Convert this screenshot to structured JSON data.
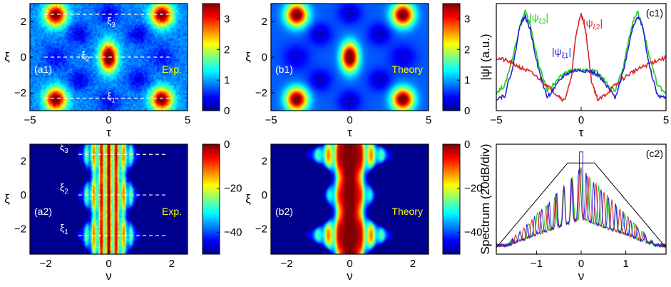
{
  "colormap": [
    "#00008f",
    "#0000ff",
    "#0080ff",
    "#00ffff",
    "#80ff80",
    "#ffff00",
    "#ff8000",
    "#ff0000",
    "#800000"
  ],
  "chart_data": [
    {
      "id": "a1",
      "type": "heatmap",
      "tag": "(a1)",
      "note": "Exp.",
      "xlabel": "τ",
      "ylabel": "ξ",
      "xlim": [
        -5,
        5
      ],
      "ylim": [
        -3,
        3
      ],
      "xticks": [
        -5,
        0,
        5
      ],
      "yticks": [
        -2,
        0,
        2
      ],
      "colorbar": {
        "range": [
          0,
          3.5
        ],
        "ticks": [
          0,
          1,
          2,
          3
        ]
      },
      "peaks": [
        {
          "x": -3.4,
          "y": 2.4,
          "amplitude": 2.8
        },
        {
          "x": 3.4,
          "y": 2.4,
          "amplitude": 2.8
        },
        {
          "x": 0,
          "y": 0,
          "amplitude": 3.1
        },
        {
          "x": -3.4,
          "y": -2.4,
          "amplitude": 2.8
        },
        {
          "x": 3.4,
          "y": -2.4,
          "amplitude": 2.8
        }
      ],
      "markers": [
        {
          "label_base": "ξ",
          "label_sub": "3",
          "y": 2.4
        },
        {
          "label_base": "ξ",
          "label_sub": "2",
          "y": 0
        },
        {
          "label_base": "ξ",
          "label_sub": "1",
          "y": -2.3
        }
      ]
    },
    {
      "id": "b1",
      "type": "heatmap",
      "tag": "(b1)",
      "note": "Theory",
      "xlabel": "τ",
      "ylabel": "ξ",
      "xlim": [
        -5,
        5
      ],
      "ylim": [
        -3,
        3
      ],
      "xticks": [
        -5,
        0,
        5
      ],
      "yticks": [
        -2,
        0,
        2
      ],
      "colorbar": {
        "range": [
          0,
          3.5
        ],
        "ticks": [
          0,
          1,
          2,
          3
        ]
      },
      "peaks": [
        {
          "x": -3.4,
          "y": 2.4,
          "amplitude": 3.0
        },
        {
          "x": 3.4,
          "y": 2.4,
          "amplitude": 3.0
        },
        {
          "x": 0,
          "y": 0,
          "amplitude": 3.2
        },
        {
          "x": -3.4,
          "y": -2.4,
          "amplitude": 3.0
        },
        {
          "x": 3.4,
          "y": -2.4,
          "amplitude": 3.0
        }
      ]
    },
    {
      "id": "c1",
      "type": "line",
      "tag": "(c1)",
      "xlabel": "τ",
      "ylabel": "|ψ| (a.u.)",
      "xlim": [
        -5,
        5
      ],
      "xticks": [
        -5,
        0,
        5
      ],
      "series": [
        {
          "label_base": "|ψ",
          "label_sub": "ξ3",
          "label_end": "|",
          "color": "#22cc22",
          "x": [
            -5,
            -4.5,
            -4,
            -3.6,
            -3.3,
            -3.0,
            -2.5,
            -2,
            -1.5,
            -1,
            -0.5,
            0,
            0.5,
            1,
            1.5,
            2,
            2.5,
            3.0,
            3.3,
            3.6,
            4,
            4.5,
            5
          ],
          "y": [
            0.18,
            0.25,
            0.55,
            0.85,
            0.98,
            0.85,
            0.45,
            0.2,
            0.28,
            0.37,
            0.4,
            0.4,
            0.4,
            0.37,
            0.28,
            0.2,
            0.45,
            0.85,
            0.98,
            0.85,
            0.55,
            0.25,
            0.18
          ]
        },
        {
          "label_base": "|ψ",
          "label_sub": "ξ2",
          "label_end": "|",
          "color": "#dd2222",
          "x": [
            -5,
            -4.5,
            -4,
            -3.5,
            -3,
            -2.5,
            -2,
            -1.5,
            -1,
            -0.6,
            -0.3,
            0,
            0.3,
            0.6,
            1,
            1.5,
            2,
            2.5,
            3,
            3.5,
            4,
            4.5,
            5
          ],
          "y": [
            0.52,
            0.5,
            0.46,
            0.42,
            0.38,
            0.32,
            0.25,
            0.17,
            0.1,
            0.3,
            0.75,
            0.97,
            0.75,
            0.3,
            0.1,
            0.17,
            0.25,
            0.32,
            0.38,
            0.42,
            0.46,
            0.5,
            0.52
          ]
        },
        {
          "label_base": "|ψ",
          "label_sub": "ξ1",
          "label_end": "|",
          "color": "#2222dd",
          "x": [
            -5,
            -4.5,
            -4,
            -3.6,
            -3.3,
            -3.0,
            -2.5,
            -2,
            -1.5,
            -1,
            -0.5,
            0,
            0.5,
            1,
            1.5,
            2,
            2.5,
            3.0,
            3.3,
            3.6,
            4,
            4.5,
            5
          ],
          "y": [
            0.12,
            0.15,
            0.45,
            0.85,
            0.93,
            0.8,
            0.4,
            0.13,
            0.24,
            0.35,
            0.39,
            0.4,
            0.39,
            0.35,
            0.24,
            0.13,
            0.4,
            0.8,
            0.93,
            0.85,
            0.45,
            0.15,
            0.12
          ]
        }
      ]
    },
    {
      "id": "a2",
      "type": "heatmap",
      "tag": "(a2)",
      "note": "Exp.",
      "xlabel": "ν",
      "ylabel": "ξ",
      "xlim": [
        -2.5,
        2.5
      ],
      "ylim": [
        -3.5,
        3
      ],
      "xticks": [
        -2,
        0,
        2
      ],
      "yticks": [
        -2,
        0,
        2
      ],
      "colorbar": {
        "range": [
          -50,
          0
        ],
        "ticks": [
          0,
          -20,
          -40
        ]
      },
      "markers": [
        {
          "label_base": "ξ",
          "label_sub": "3",
          "y": 2.4
        },
        {
          "label_base": "ξ",
          "label_sub": "2",
          "y": 0
        },
        {
          "label_base": "ξ",
          "label_sub": "1",
          "y": -2.4
        }
      ]
    },
    {
      "id": "b2",
      "type": "heatmap",
      "tag": "(b2)",
      "note": "Theory",
      "xlabel": "ν",
      "ylabel": "ξ",
      "xlim": [
        -2.5,
        2.5
      ],
      "ylim": [
        -3.5,
        3
      ],
      "xticks": [
        -2,
        0,
        2
      ],
      "yticks": [
        -2,
        0,
        2
      ],
      "colorbar": {
        "range": [
          -50,
          0
        ],
        "ticks": [
          0,
          -20,
          -40
        ]
      }
    },
    {
      "id": "c2",
      "type": "line",
      "tag": "(c2)",
      "xlabel": "ν",
      "ylabel": "Spectrum (20dB/div)",
      "xlim": [
        -1.9,
        1.9
      ],
      "xticks": [
        -1,
        0,
        1
      ],
      "envelope": {
        "x": [
          -1.9,
          -0.3,
          0.3,
          1.9
        ],
        "y": [
          0.06,
          0.83,
          0.83,
          0.06
        ]
      }
    }
  ]
}
